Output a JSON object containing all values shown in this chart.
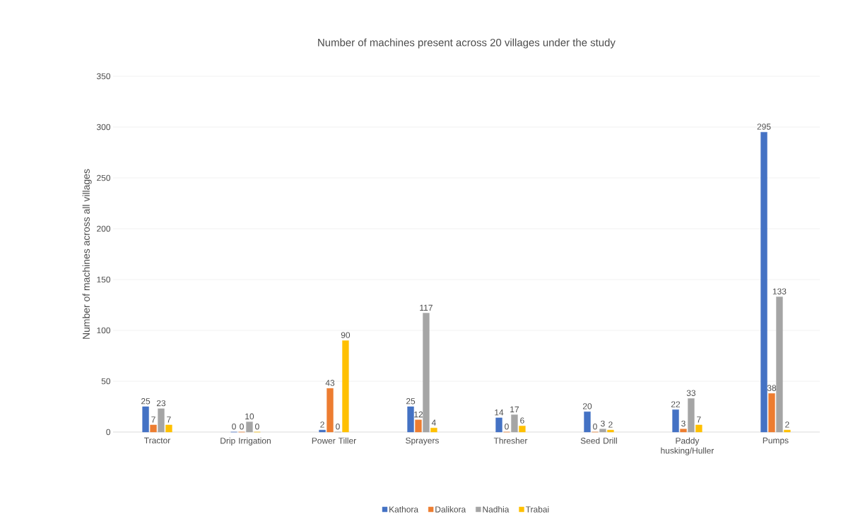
{
  "chart_data": {
    "type": "bar",
    "title": "Number of machines present across 20 villages under the study",
    "ylabel": "Number of machines across all villages",
    "categories": [
      "Tractor",
      "Drip Irrigation",
      "Power Tiller",
      "Sprayers",
      "Thresher",
      "Seed Drill",
      "Paddy husking/Huller",
      "Pumps"
    ],
    "series": [
      {
        "name": "Kathora",
        "color": "#4472c4",
        "values": [
          25,
          0,
          2,
          25,
          14,
          20,
          22,
          295
        ]
      },
      {
        "name": "Dalikora",
        "color": "#ed7d31",
        "values": [
          7,
          0,
          43,
          12,
          0,
          0,
          3,
          38
        ]
      },
      {
        "name": "Nadhia",
        "color": "#a5a5a5",
        "values": [
          23,
          10,
          0,
          117,
          17,
          3,
          33,
          133
        ]
      },
      {
        "name": "Trabai",
        "color": "#ffc000",
        "values": [
          7,
          0,
          90,
          4,
          6,
          2,
          7,
          2
        ]
      }
    ],
    "ylim": [
      0,
      350
    ],
    "yticks": [
      0,
      50,
      100,
      150,
      200,
      250,
      300,
      350
    ],
    "grid": "y",
    "legend": "bottom",
    "data_labels": true
  }
}
